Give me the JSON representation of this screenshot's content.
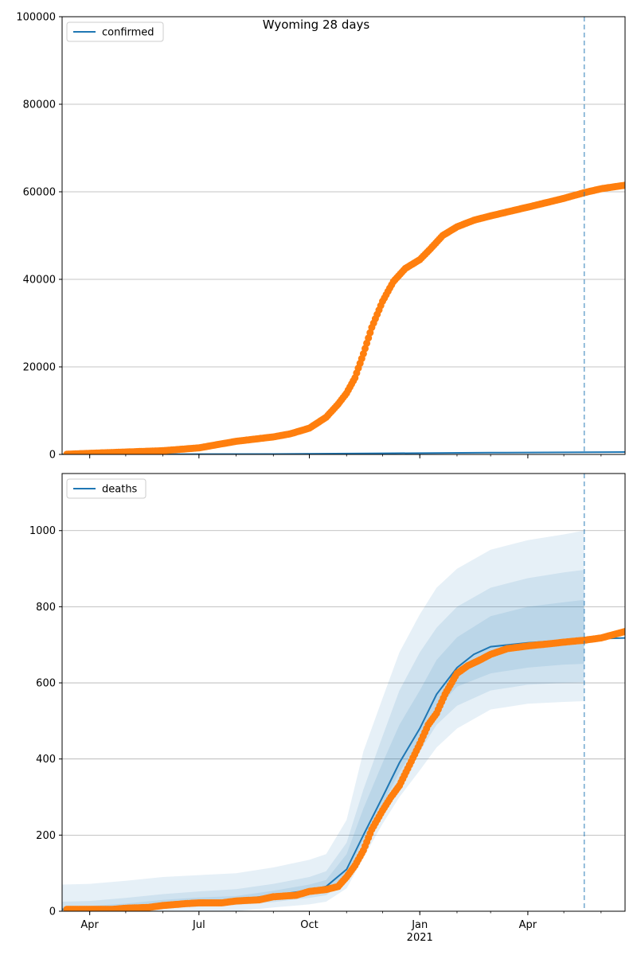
{
  "chart_data": {
    "title": "Wyoming 28 days",
    "type": "line",
    "forecast_start": "2021-05-18",
    "x_range": [
      "2020-03-09",
      "2021-06-21"
    ],
    "x_ticks": [
      {
        "date": "2020-04-01",
        "label": "Apr"
      },
      {
        "date": "2020-07-01",
        "label": "Jul"
      },
      {
        "date": "2020-10-01",
        "label": "Oct"
      },
      {
        "date": "2021-01-01",
        "label": "Jan",
        "sublabel": "2021"
      },
      {
        "date": "2021-04-01",
        "label": "Apr"
      }
    ],
    "colors": {
      "model": "#1f77b4",
      "observed": "#ff7f0e",
      "band": "#1f77b4",
      "grid": "#b0b0b0",
      "forecast_line": "#1f77b4"
    },
    "panels": [
      {
        "name": "confirmed",
        "legend": "confirmed",
        "legend_position": "upper left",
        "ylim": [
          0,
          100000
        ],
        "y_ticks": [
          0,
          20000,
          40000,
          60000,
          80000,
          100000
        ],
        "grid": true,
        "model_line": {
          "x": [
            "2020-03-09",
            "2020-06-01",
            "2020-09-01",
            "2020-12-01",
            "2021-03-01",
            "2021-06-21"
          ],
          "y": [
            0,
            50,
            100,
            250,
            400,
            550
          ]
        },
        "observed": {
          "x": [
            "2020-03-13",
            "2020-04-01",
            "2020-05-01",
            "2020-06-01",
            "2020-07-01",
            "2020-08-01",
            "2020-09-01",
            "2020-09-15",
            "2020-10-01",
            "2020-10-15",
            "2020-10-25",
            "2020-11-01",
            "2020-11-08",
            "2020-11-15",
            "2020-11-22",
            "2020-12-01",
            "2020-12-10",
            "2020-12-20",
            "2021-01-01",
            "2021-01-10",
            "2021-01-20",
            "2021-02-01",
            "2021-02-15",
            "2021-03-01",
            "2021-04-01",
            "2021-05-01",
            "2021-05-18",
            "2021-06-01",
            "2021-06-21"
          ],
          "y": [
            50,
            250,
            550,
            850,
            1500,
            3000,
            4000,
            4700,
            6000,
            8500,
            11500,
            14000,
            17500,
            23000,
            29000,
            35000,
            39500,
            42500,
            44500,
            47000,
            50000,
            52000,
            53500,
            54500,
            56500,
            58500,
            59800,
            60700,
            61500
          ]
        }
      },
      {
        "name": "deaths",
        "legend": "deaths",
        "legend_position": "upper left",
        "ylim": [
          0,
          1150
        ],
        "y_ticks": [
          0,
          200,
          400,
          600,
          800,
          1000
        ],
        "grid": true,
        "model_line": {
          "x": [
            "2020-03-09",
            "2020-04-01",
            "2020-05-01",
            "2020-06-01",
            "2020-07-01",
            "2020-08-01",
            "2020-09-01",
            "2020-10-01",
            "2020-10-15",
            "2020-11-01",
            "2020-11-15",
            "2020-12-01",
            "2020-12-15",
            "2021-01-01",
            "2021-01-15",
            "2021-02-01",
            "2021-02-15",
            "2021-03-01",
            "2021-04-01",
            "2021-05-01",
            "2021-05-18",
            "2021-06-21"
          ],
          "y": [
            5,
            5,
            10,
            20,
            25,
            30,
            42,
            55,
            65,
            110,
            200,
            300,
            390,
            480,
            570,
            640,
            675,
            695,
            705,
            712,
            715,
            718
          ]
        },
        "bands": [
          {
            "x": [
              "2020-03-09",
              "2020-04-01",
              "2020-05-01",
              "2020-06-01",
              "2020-07-01",
              "2020-08-01",
              "2020-09-01",
              "2020-10-01",
              "2020-10-15",
              "2020-11-01",
              "2020-11-15",
              "2020-12-01",
              "2020-12-15",
              "2021-01-01",
              "2021-01-15",
              "2021-02-01",
              "2021-03-01",
              "2021-04-01",
              "2021-05-01",
              "2021-05-18"
            ],
            "lower": [
              0,
              0,
              0,
              0,
              0,
              0,
              10,
              18,
              25,
              60,
              140,
              230,
              300,
              370,
              430,
              480,
              530,
              545,
              550,
              552
            ],
            "upper": [
              70,
              72,
              80,
              90,
              95,
              100,
              115,
              135,
              150,
              240,
              420,
              560,
              680,
              780,
              850,
              900,
              950,
              975,
              990,
              1000
            ]
          },
          {
            "x": [
              "2020-03-09",
              "2020-04-01",
              "2020-05-01",
              "2020-06-01",
              "2020-07-01",
              "2020-08-01",
              "2020-09-01",
              "2020-10-01",
              "2020-10-15",
              "2020-11-01",
              "2020-11-15",
              "2020-12-01",
              "2020-12-15",
              "2021-01-01",
              "2021-01-15",
              "2021-02-01",
              "2021-03-01",
              "2021-04-01",
              "2021-05-01",
              "2021-05-18"
            ],
            "lower": [
              0,
              0,
              2,
              8,
              12,
              16,
              24,
              35,
              42,
              80,
              165,
              260,
              340,
              420,
              490,
              540,
              580,
              595,
              600,
              602
            ],
            "upper": [
              25,
              27,
              35,
              45,
              52,
              58,
              72,
              90,
              105,
              180,
              320,
              460,
              580,
              680,
              745,
              800,
              850,
              875,
              890,
              897
            ]
          },
          {
            "x": [
              "2020-03-09",
              "2020-04-01",
              "2020-05-01",
              "2020-06-01",
              "2020-07-01",
              "2020-08-01",
              "2020-09-01",
              "2020-10-01",
              "2020-10-15",
              "2020-11-01",
              "2020-11-15",
              "2020-12-01",
              "2020-12-15",
              "2021-01-01",
              "2021-01-15",
              "2021-02-01",
              "2021-03-01",
              "2021-04-01",
              "2021-05-01",
              "2021-05-18"
            ],
            "lower": [
              0,
              0,
              6,
              14,
              18,
              22,
              32,
              45,
              54,
              95,
              185,
              280,
              365,
              450,
              530,
              590,
              625,
              640,
              648,
              650
            ],
            "upper": [
              12,
              14,
              20,
              30,
              36,
              40,
              54,
              70,
              82,
              150,
              270,
              390,
              490,
              580,
              660,
              720,
              775,
              800,
              812,
              818
            ]
          }
        ],
        "observed": {
          "x": [
            "2020-03-13",
            "2020-04-01",
            "2020-04-20",
            "2020-05-01",
            "2020-05-20",
            "2020-06-01",
            "2020-06-20",
            "2020-07-01",
            "2020-07-20",
            "2020-08-01",
            "2020-08-20",
            "2020-09-01",
            "2020-09-20",
            "2020-10-01",
            "2020-10-15",
            "2020-10-25",
            "2020-11-01",
            "2020-11-08",
            "2020-11-15",
            "2020-11-22",
            "2020-12-01",
            "2020-12-08",
            "2020-12-15",
            "2020-12-22",
            "2021-01-01",
            "2021-01-08",
            "2021-01-15",
            "2021-01-22",
            "2021-02-01",
            "2021-02-10",
            "2021-02-20",
            "2021-03-01",
            "2021-03-15",
            "2021-04-01",
            "2021-04-20",
            "2021-05-01",
            "2021-05-18",
            "2021-06-01",
            "2021-06-21"
          ],
          "y": [
            5,
            5,
            5,
            8,
            10,
            15,
            20,
            22,
            22,
            27,
            30,
            38,
            42,
            52,
            57,
            65,
            90,
            120,
            160,
            215,
            265,
            300,
            330,
            375,
            440,
            490,
            520,
            570,
            625,
            645,
            660,
            675,
            690,
            697,
            703,
            707,
            712,
            718,
            735
          ]
        }
      }
    ]
  }
}
